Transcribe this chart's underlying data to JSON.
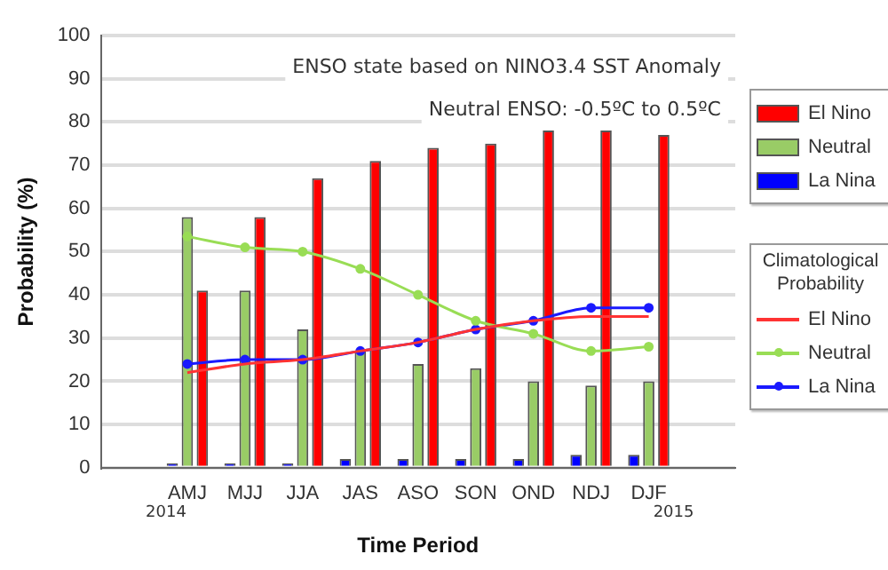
{
  "chart_data": {
    "type": "bar",
    "xlabel": "Time Period",
    "ylabel": "Probability (%)",
    "legend_title": "Climatological Probability",
    "categories": [
      null,
      "AMJ",
      "MJJ",
      "JJA",
      "JAS",
      "ASO",
      "SON",
      "OND",
      "NDJ",
      "DJF",
      null
    ],
    "series": [
      {
        "name": "El Nino",
        "color": "#ff0000",
        "values": [
          null,
          41,
          58,
          67,
          71,
          74,
          75,
          78,
          78,
          77,
          null
        ]
      },
      {
        "name": "Neutral",
        "color": "#99cc66",
        "values": [
          null,
          58,
          41,
          32,
          27,
          24,
          23,
          20,
          19,
          20,
          null
        ]
      },
      {
        "name": "La Nina",
        "color": "#0000ff",
        "values": [
          null,
          1,
          1,
          1,
          2,
          2,
          2,
          2,
          3,
          3,
          null
        ]
      },
      {
        "name": "El Nino",
        "type": "line",
        "color": "#ff3333",
        "marker": "none",
        "values": [
          null,
          22,
          24,
          25,
          27,
          29,
          32,
          34,
          35,
          35,
          null
        ]
      },
      {
        "name": "Neutral",
        "type": "line",
        "color": "#99dd55",
        "marker": "circle",
        "values": [
          null,
          53.5,
          51,
          50,
          46,
          40,
          34,
          31,
          27,
          28,
          null
        ]
      },
      {
        "name": "La Nina",
        "type": "line",
        "color": "#1a1aff",
        "marker": "circle",
        "values": [
          null,
          24,
          25,
          25,
          27,
          29,
          32,
          34,
          37,
          37,
          null
        ]
      }
    ],
    "ylim": [
      0,
      100
    ],
    "yticks": [
      0,
      10,
      20,
      30,
      40,
      50,
      60,
      70,
      80,
      90,
      100
    ],
    "grid": "y",
    "legend": "right",
    "annotations": [
      "ENSO state based on NINO3.4 SST Anomaly",
      "Neutral ENSO: -0.5ºC to 0.5ºC",
      "2014",
      "2015"
    ]
  }
}
